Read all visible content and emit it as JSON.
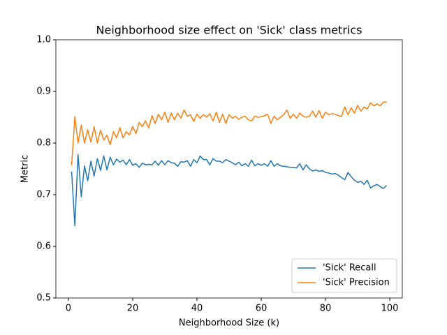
{
  "chart_data": {
    "type": "line",
    "title": "Neighborhood size effect on 'Sick' class metrics",
    "x_label": "Neighborhood Size (k)",
    "y_label": "Metric",
    "x": [
      1,
      2,
      3,
      4,
      5,
      6,
      7,
      8,
      9,
      10,
      11,
      12,
      13,
      14,
      15,
      16,
      17,
      18,
      19,
      20,
      21,
      22,
      23,
      24,
      25,
      26,
      27,
      28,
      29,
      30,
      31,
      32,
      33,
      34,
      35,
      36,
      37,
      38,
      39,
      40,
      41,
      42,
      43,
      44,
      45,
      46,
      47,
      48,
      49,
      50,
      51,
      52,
      53,
      54,
      55,
      56,
      57,
      58,
      59,
      60,
      61,
      62,
      63,
      64,
      65,
      66,
      67,
      68,
      69,
      70,
      71,
      72,
      73,
      74,
      75,
      76,
      77,
      78,
      79,
      80,
      81,
      82,
      83,
      84,
      85,
      86,
      87,
      88,
      89,
      90,
      91,
      92,
      93,
      94,
      95,
      96,
      97,
      98,
      99
    ],
    "series": [
      {
        "name": "'Sick' Recall",
        "color": "#1f77b4",
        "values": [
          0.745,
          0.64,
          0.778,
          0.696,
          0.756,
          0.727,
          0.765,
          0.736,
          0.77,
          0.747,
          0.775,
          0.748,
          0.773,
          0.758,
          0.769,
          0.763,
          0.767,
          0.758,
          0.768,
          0.757,
          0.76,
          0.753,
          0.761,
          0.758,
          0.759,
          0.758,
          0.765,
          0.757,
          0.766,
          0.758,
          0.766,
          0.762,
          0.761,
          0.755,
          0.764,
          0.763,
          0.766,
          0.755,
          0.768,
          0.762,
          0.775,
          0.768,
          0.768,
          0.758,
          0.77,
          0.765,
          0.765,
          0.762,
          0.768,
          0.765,
          0.762,
          0.758,
          0.763,
          0.756,
          0.76,
          0.755,
          0.767,
          0.756,
          0.76,
          0.757,
          0.76,
          0.755,
          0.766,
          0.755,
          0.76,
          0.756,
          0.755,
          0.754,
          0.753,
          0.753,
          0.752,
          0.76,
          0.748,
          0.758,
          0.75,
          0.746,
          0.748,
          0.745,
          0.747,
          0.743,
          0.742,
          0.74,
          0.741,
          0.738,
          0.733,
          0.729,
          0.743,
          0.735,
          0.728,
          0.724,
          0.726,
          0.72,
          0.728,
          0.713,
          0.717,
          0.72,
          0.716,
          0.712,
          0.718
        ]
      },
      {
        "name": "'Sick' Precision",
        "color": "#ff7f0e",
        "values": [
          0.757,
          0.851,
          0.8,
          0.835,
          0.8,
          0.826,
          0.802,
          0.832,
          0.8,
          0.825,
          0.806,
          0.815,
          0.797,
          0.822,
          0.81,
          0.83,
          0.81,
          0.822,
          0.816,
          0.832,
          0.818,
          0.84,
          0.832,
          0.843,
          0.829,
          0.853,
          0.838,
          0.856,
          0.845,
          0.86,
          0.84,
          0.858,
          0.845,
          0.858,
          0.848,
          0.864,
          0.852,
          0.855,
          0.842,
          0.856,
          0.848,
          0.855,
          0.85,
          0.857,
          0.843,
          0.86,
          0.84,
          0.856,
          0.838,
          0.855,
          0.848,
          0.852,
          0.846,
          0.85,
          0.852,
          0.845,
          0.843,
          0.852,
          0.85,
          0.851,
          0.853,
          0.856,
          0.838,
          0.852,
          0.845,
          0.85,
          0.855,
          0.864,
          0.848,
          0.856,
          0.848,
          0.858,
          0.852,
          0.85,
          0.852,
          0.862,
          0.85,
          0.863,
          0.848,
          0.86,
          0.855,
          0.857,
          0.856,
          0.853,
          0.852,
          0.87,
          0.855,
          0.868,
          0.858,
          0.873,
          0.862,
          0.87,
          0.866,
          0.878,
          0.872,
          0.876,
          0.872,
          0.879,
          0.88
        ]
      }
    ],
    "xlim": [
      -3.9,
      103.9
    ],
    "xticks": [
      0,
      20,
      40,
      60,
      80,
      100
    ],
    "ylim": [
      0.5,
      1.0
    ],
    "yticks": [
      0.5,
      0.6,
      0.7,
      0.8,
      0.9,
      {
        "value": 1.0,
        "label": "1.0"
      }
    ],
    "legend": "lower right"
  }
}
